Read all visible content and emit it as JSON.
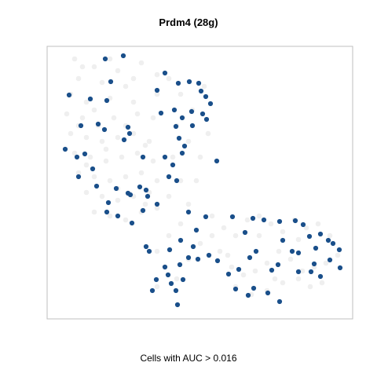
{
  "chart_data": {
    "type": "scatter",
    "title": "Prdm4 (28g)",
    "xlabel": "Cells with AUC > 0.016",
    "ylabel": "",
    "grid": false,
    "legend": "none",
    "colors": {
      "background_cells": "#efefef",
      "positive_cells": "#1a4f8a",
      "frame": "#bfbfbf"
    },
    "series": [
      {
        "name": "",
        "role": "background",
        "points": [
          [
            95,
            75
          ],
          [
            120,
            85
          ],
          [
            150,
            90
          ],
          [
            180,
            80
          ],
          [
            200,
            95
          ],
          [
            100,
            100
          ],
          [
            130,
            105
          ],
          [
            160,
            110
          ],
          [
            90,
            120
          ],
          [
            110,
            130
          ],
          [
            140,
            125
          ],
          [
            170,
            130
          ],
          [
            200,
            120
          ],
          [
            85,
            145
          ],
          [
            105,
            150
          ],
          [
            125,
            160
          ],
          [
            145,
            150
          ],
          [
            175,
            145
          ],
          [
            195,
            150
          ],
          [
            90,
            170
          ],
          [
            110,
            175
          ],
          [
            130,
            180
          ],
          [
            150,
            175
          ],
          [
            170,
            170
          ],
          [
            190,
            180
          ],
          [
            95,
            195
          ],
          [
            115,
            200
          ],
          [
            135,
            205
          ],
          [
            155,
            200
          ],
          [
            175,
            195
          ],
          [
            195,
            205
          ],
          [
            100,
            220
          ],
          [
            120,
            225
          ],
          [
            140,
            230
          ],
          [
            160,
            225
          ],
          [
            180,
            220
          ],
          [
            200,
            230
          ],
          [
            110,
            245
          ],
          [
            130,
            250
          ],
          [
            150,
            255
          ],
          [
            170,
            250
          ],
          [
            190,
            245
          ],
          [
            120,
            270
          ],
          [
            140,
            275
          ],
          [
            160,
            280
          ],
          [
            180,
            270
          ],
          [
            200,
            265
          ],
          [
            215,
            100
          ],
          [
            230,
            120
          ],
          [
            245,
            140
          ],
          [
            260,
            110
          ],
          [
            225,
            160
          ],
          [
            240,
            180
          ],
          [
            255,
            200
          ],
          [
            220,
            200
          ],
          [
            230,
            230
          ],
          [
            215,
            250
          ],
          [
            240,
            260
          ],
          [
            230,
            285
          ],
          [
            215,
            300
          ],
          [
            200,
            320
          ],
          [
            210,
            340
          ],
          [
            225,
            355
          ],
          [
            200,
            365
          ],
          [
            240,
            330
          ],
          [
            255,
            310
          ],
          [
            270,
            300
          ],
          [
            285,
            290
          ],
          [
            300,
            300
          ],
          [
            315,
            280
          ],
          [
            330,
            275
          ],
          [
            345,
            285
          ],
          [
            360,
            295
          ],
          [
            375,
            280
          ],
          [
            390,
            290
          ],
          [
            405,
            285
          ],
          [
            420,
            300
          ],
          [
            280,
            320
          ],
          [
            295,
            340
          ],
          [
            310,
            350
          ],
          [
            325,
            345
          ],
          [
            340,
            335
          ],
          [
            355,
            320
          ],
          [
            370,
            330
          ],
          [
            385,
            345
          ],
          [
            400,
            340
          ],
          [
            415,
            335
          ],
          [
            300,
            365
          ],
          [
            320,
            375
          ],
          [
            340,
            370
          ],
          [
            360,
            360
          ],
          [
            380,
            355
          ],
          [
            395,
            365
          ],
          [
            410,
            360
          ],
          [
            430,
            325
          ],
          [
            105,
            85
          ],
          [
            140,
            75
          ],
          [
            170,
            100
          ],
          [
            120,
            140
          ],
          [
            160,
            160
          ],
          [
            100,
            160
          ],
          [
            135,
            190
          ],
          [
            185,
            185
          ],
          [
            110,
            210
          ],
          [
            150,
            240
          ],
          [
            185,
            260
          ],
          [
            265,
            170
          ],
          [
            250,
            230
          ],
          [
            270,
            275
          ],
          [
            330,
            300
          ],
          [
            380,
            305
          ],
          [
            350,
            355
          ],
          [
            290,
            325
          ]
        ]
      },
      {
        "name": "",
        "role": "positive",
        "points": [
          [
            134,
            75
          ],
          [
            157,
            71
          ],
          [
            88,
            121
          ],
          [
            115,
            126
          ],
          [
            136,
            128
          ],
          [
            141,
            104
          ],
          [
            210,
            93
          ],
          [
            227,
            106
          ],
          [
            241,
            104
          ],
          [
            253,
            106
          ],
          [
            256,
            116
          ],
          [
            262,
            123
          ],
          [
            268,
            132
          ],
          [
            200,
            115
          ],
          [
            222,
            140
          ],
          [
            205,
            144
          ],
          [
            232,
            150
          ],
          [
            244,
            142
          ],
          [
            258,
            145
          ],
          [
            263,
            152
          ],
          [
            245,
            160
          ],
          [
            224,
            161
          ],
          [
            228,
            176
          ],
          [
            235,
            186
          ],
          [
            232,
            195
          ],
          [
            210,
            200
          ],
          [
            220,
            210
          ],
          [
            215,
            225
          ],
          [
            225,
            230
          ],
          [
            182,
            200
          ],
          [
            165,
            170
          ],
          [
            158,
            178
          ],
          [
            103,
            160
          ],
          [
            125,
            158
          ],
          [
            133,
            165
          ],
          [
            163,
            162
          ],
          [
            83,
            190
          ],
          [
            98,
            200
          ],
          [
            108,
            196
          ],
          [
            118,
            215
          ],
          [
            100,
            225
          ],
          [
            123,
            237
          ],
          [
            148,
            240
          ],
          [
            163,
            246
          ],
          [
            178,
            238
          ],
          [
            186,
            242
          ],
          [
            166,
            248
          ],
          [
            138,
            258
          ],
          [
            136,
            270
          ],
          [
            150,
            275
          ],
          [
            168,
            284
          ],
          [
            182,
            268
          ],
          [
            240,
            270
          ],
          [
            250,
            293
          ],
          [
            262,
            276
          ],
          [
            276,
            205
          ],
          [
            296,
            276
          ],
          [
            312,
            296
          ],
          [
            326,
            320
          ],
          [
            322,
            278
          ],
          [
            336,
            280
          ],
          [
            356,
            282
          ],
          [
            360,
            306
          ],
          [
            376,
            281
          ],
          [
            386,
            286
          ],
          [
            394,
            301
          ],
          [
            408,
            298
          ],
          [
            418,
            306
          ],
          [
            380,
            322
          ],
          [
            372,
            320
          ],
          [
            402,
            316
          ],
          [
            424,
            310
          ],
          [
            432,
            318
          ],
          [
            433,
            341
          ],
          [
            400,
            336
          ],
          [
            380,
            346
          ],
          [
            354,
            337
          ],
          [
            346,
            344
          ],
          [
            341,
            373
          ],
          [
            323,
            367
          ],
          [
            316,
            376
          ],
          [
            300,
            368
          ],
          [
            291,
            349
          ],
          [
            304,
            343
          ],
          [
            318,
            328
          ],
          [
            277,
            332
          ],
          [
            252,
            330
          ],
          [
            240,
            328
          ],
          [
            230,
            306
          ],
          [
            246,
            314
          ],
          [
            216,
            318
          ],
          [
            210,
            340
          ],
          [
            214,
            350
          ],
          [
            218,
            361
          ],
          [
            224,
            370
          ],
          [
            226,
            388
          ],
          [
            199,
            356
          ],
          [
            194,
            370
          ],
          [
            190,
            320
          ],
          [
            186,
            314
          ],
          [
            229,
            337
          ],
          [
            233,
            356
          ],
          [
            266,
            325
          ],
          [
            188,
            250
          ],
          [
            200,
            260
          ],
          [
            356,
            384
          ],
          [
            396,
            346
          ],
          [
            420,
            331
          ],
          [
            408,
            352
          ]
        ]
      }
    ]
  }
}
